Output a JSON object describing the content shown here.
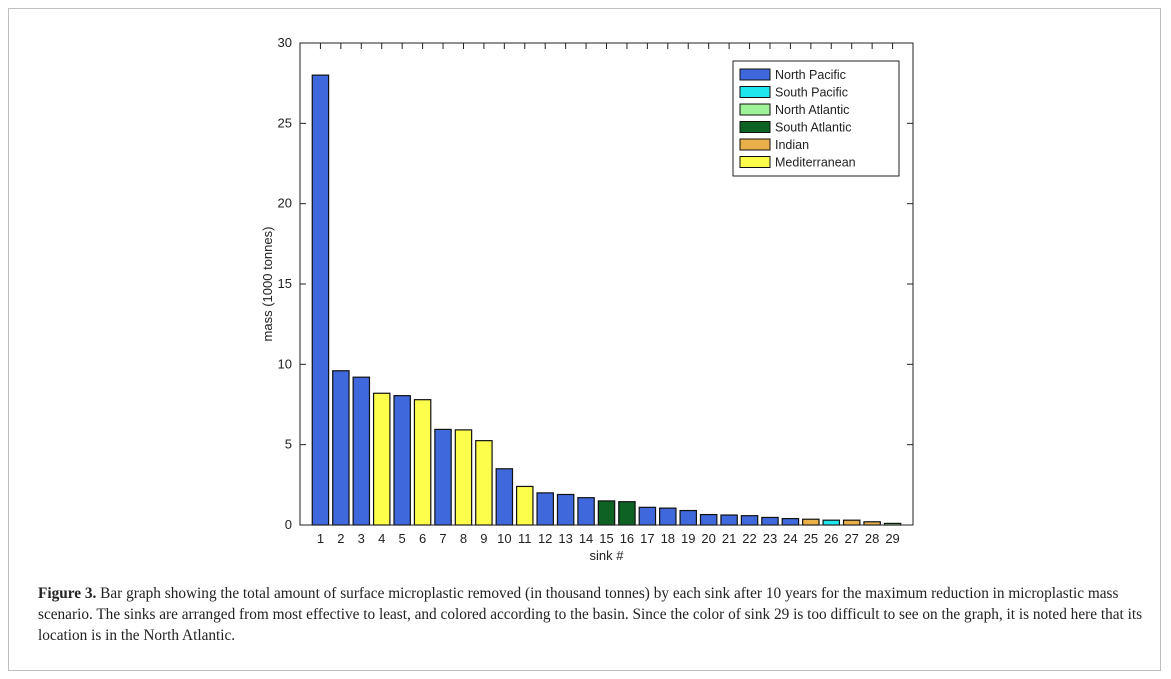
{
  "figure": {
    "caption_label": "Figure 3.",
    "caption_text": " Bar graph showing the total amount of surface microplastic removed (in thousand tonnes) by each sink after 10 years for the maximum reduction in microplastic mass scenario. The sinks are arranged from most effective to least, and colored according to the basin. Since the color of sink 29 is too difficult to see on the graph, it is noted here that its location is in the North Atlantic."
  },
  "colors": {
    "North Pacific": "#3f68dc",
    "South Pacific": "#1ee6ec",
    "North Atlantic": "#9ef298",
    "South Atlantic": "#0d6224",
    "Indian": "#e9b04a",
    "Mediterranean": "#fdfd4c"
  },
  "chart_data": {
    "type": "bar",
    "title": "",
    "xlabel": "sink #",
    "ylabel": "mass (1000 tonnes)",
    "ylim": [
      0,
      30
    ],
    "yticks": [
      0,
      5,
      10,
      15,
      20,
      25,
      30
    ],
    "categories": [
      "1",
      "2",
      "3",
      "4",
      "5",
      "6",
      "7",
      "8",
      "9",
      "10",
      "11",
      "12",
      "13",
      "14",
      "15",
      "16",
      "17",
      "18",
      "19",
      "20",
      "21",
      "22",
      "23",
      "24",
      "25",
      "26",
      "27",
      "28",
      "29"
    ],
    "values": [
      28.0,
      9.6,
      9.2,
      8.2,
      8.05,
      7.8,
      5.95,
      5.92,
      5.25,
      3.5,
      2.4,
      2.0,
      1.9,
      1.7,
      1.5,
      1.45,
      1.1,
      1.05,
      0.9,
      0.65,
      0.62,
      0.58,
      0.47,
      0.4,
      0.36,
      0.3,
      0.3,
      0.2,
      0.1
    ],
    "basins": [
      "North Pacific",
      "North Pacific",
      "North Pacific",
      "Mediterranean",
      "North Pacific",
      "Mediterranean",
      "North Pacific",
      "Mediterranean",
      "Mediterranean",
      "North Pacific",
      "Mediterranean",
      "North Pacific",
      "North Pacific",
      "North Pacific",
      "South Atlantic",
      "South Atlantic",
      "North Pacific",
      "North Pacific",
      "North Pacific",
      "North Pacific",
      "North Pacific",
      "North Pacific",
      "North Pacific",
      "North Pacific",
      "Indian",
      "South Pacific",
      "Indian",
      "Indian",
      "North Atlantic"
    ],
    "legend": [
      "North Pacific",
      "South Pacific",
      "North Atlantic",
      "South Atlantic",
      "Indian",
      "Mediterranean"
    ],
    "legend_position": "top-right",
    "grid": false
  }
}
